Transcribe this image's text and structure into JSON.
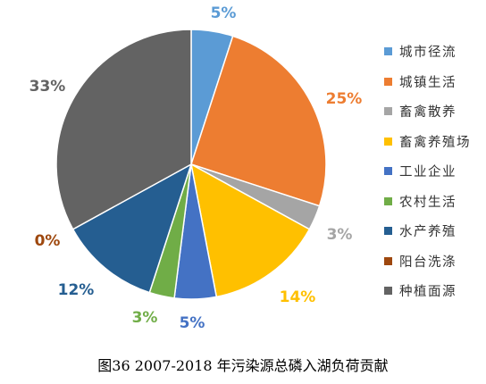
{
  "chart_data": {
    "type": "pie",
    "title": "",
    "categories": [
      "城市径流",
      "城镇生活",
      "畜禽散养",
      "畜禽养殖场",
      "工业企业",
      "农村生活",
      "水产养殖",
      "阳台洗涤",
      "种植面源"
    ],
    "values": [
      5,
      25,
      3,
      14,
      5,
      3,
      12,
      0,
      33
    ],
    "labels": [
      "5%",
      "25%",
      "3%",
      "14%",
      "5%",
      "3%",
      "12%",
      "0%",
      "33%"
    ],
    "colors": [
      "#5b9bd5",
      "#ed7d31",
      "#a5a5a5",
      "#ffc000",
      "#4472c4",
      "#70ad47",
      "#255e91",
      "#9e480e",
      "#636363"
    ],
    "legend": "right"
  },
  "caption": "图36 2007-2018 年污染源总磷入湖负荷贡献"
}
